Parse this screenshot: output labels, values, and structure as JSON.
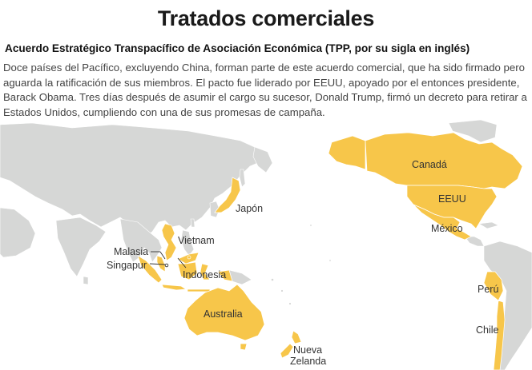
{
  "title": "Tratados comerciales",
  "subtitle": "Acuerdo Estratégico Transpacífico de Asociación Económica (TPP, por su sigla en inglés)",
  "body": "Doce países del Pacífico, excluyendo China, forman parte de este acuerdo comercial, que ha sido firmado pero aguarda la ratificación de sus miembros. El pacto fue liderado por EEUU, apoyado por el entonces presidente, Barack Obama. Tres días después de asumir el cargo su sucesor, Donald Trump, firmó un decreto para retirar a Estados Unidos, cumpliendo con una de sus promesas de campaña.",
  "colors": {
    "member": "#f7c64a",
    "land": "#d6d7d6",
    "ocean": "#ffffff",
    "border": "#ffffff"
  },
  "map": {
    "countries": [
      {
        "name": "Canadá",
        "member": true
      },
      {
        "name": "EEUU",
        "member": true
      },
      {
        "name": "México",
        "member": true
      },
      {
        "name": "Japón",
        "member": true
      },
      {
        "name": "Vietnam",
        "member": true
      },
      {
        "name": "Malasia",
        "member": true
      },
      {
        "name": "Singapur",
        "member": true
      },
      {
        "name": "Indonesia",
        "member": false
      },
      {
        "name": "Australia",
        "member": true
      },
      {
        "name": "Perú",
        "member": true
      },
      {
        "name": "Chile",
        "member": true
      },
      {
        "name": "Nueva Zelanda",
        "member": true
      }
    ],
    "labels": {
      "canada": "Canadá",
      "eeuu": "EEUU",
      "mexico": "México",
      "japon": "Japón",
      "vietnam": "Vietnam",
      "malasia": "Malasia",
      "singapur": "Singapur",
      "indonesia": "Indonesia",
      "australia": "Australia",
      "peru": "Perú",
      "chile": "Chile",
      "nueva": "Nueva",
      "zelanda": "Zelanda"
    }
  }
}
